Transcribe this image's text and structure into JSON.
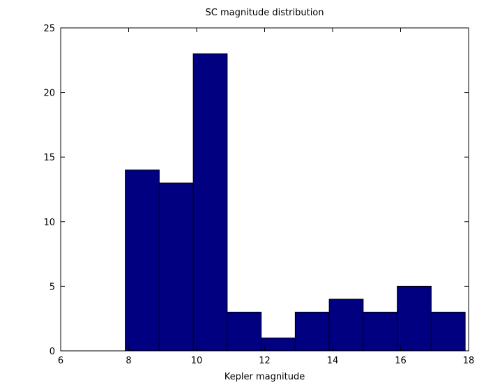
{
  "chart_data": {
    "type": "bar",
    "title": "SC magnitude distribution",
    "xlabel": "Kepler magnitude",
    "ylabel": "",
    "xlim": [
      6,
      18
    ],
    "ylim": [
      0,
      25
    ],
    "xticks": [
      6,
      8,
      10,
      12,
      14,
      16,
      18
    ],
    "yticks": [
      0,
      5,
      10,
      15,
      20,
      25
    ],
    "bin_edges": [
      7.9,
      8.9,
      9.9,
      10.9,
      11.9,
      12.9,
      13.9,
      14.9,
      15.9,
      16.9,
      17.9
    ],
    "values": [
      14,
      13,
      23,
      3,
      1,
      3,
      4,
      3,
      5,
      3
    ],
    "bar_color": "#000080",
    "grid": false,
    "legend": false
  }
}
